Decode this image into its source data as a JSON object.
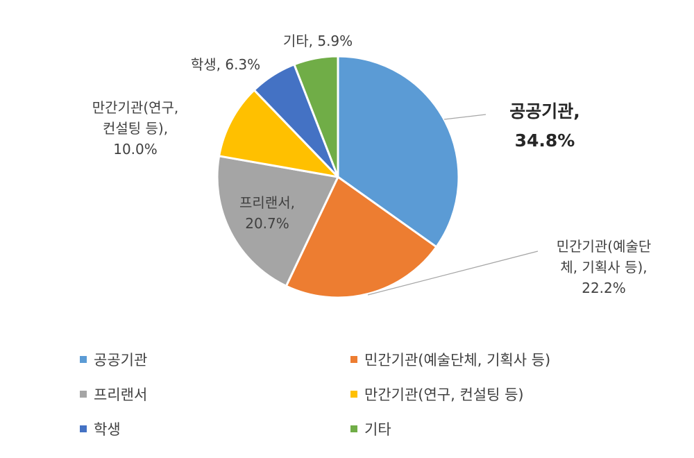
{
  "chart_data": {
    "type": "pie",
    "title": "",
    "start_angle_deg": 0,
    "direction": "clockwise",
    "legend_position": "bottom",
    "slices": [
      {
        "name": "공공기관",
        "value": 34.8,
        "color": "#5B9BD5",
        "label_lines": [
          "공공기관,",
          "34.8%"
        ]
      },
      {
        "name": "민간기관(예술단체, 기획사 등)",
        "value": 22.2,
        "color": "#ED7D31",
        "label_lines": [
          "민간기관(예술단",
          "체, 기획사 등),",
          "22.2%"
        ]
      },
      {
        "name": "프리랜서",
        "value": 20.7,
        "color": "#A5A5A5",
        "label_lines": [
          "프리랜서,",
          "20.7%"
        ]
      },
      {
        "name": "만간기관(연구, 컨설팅 등)",
        "value": 10.0,
        "color": "#FFC000",
        "label_lines": [
          "만간기관(연구,",
          "컨설팅 등),",
          "10.0%"
        ]
      },
      {
        "name": "학생",
        "value": 6.3,
        "color": "#4472C4",
        "label_lines": [
          "학생, 6.3%"
        ]
      },
      {
        "name": "기타",
        "value": 5.9,
        "color": "#70AD47",
        "label_lines": [
          "기타, 5.9%"
        ]
      }
    ]
  }
}
